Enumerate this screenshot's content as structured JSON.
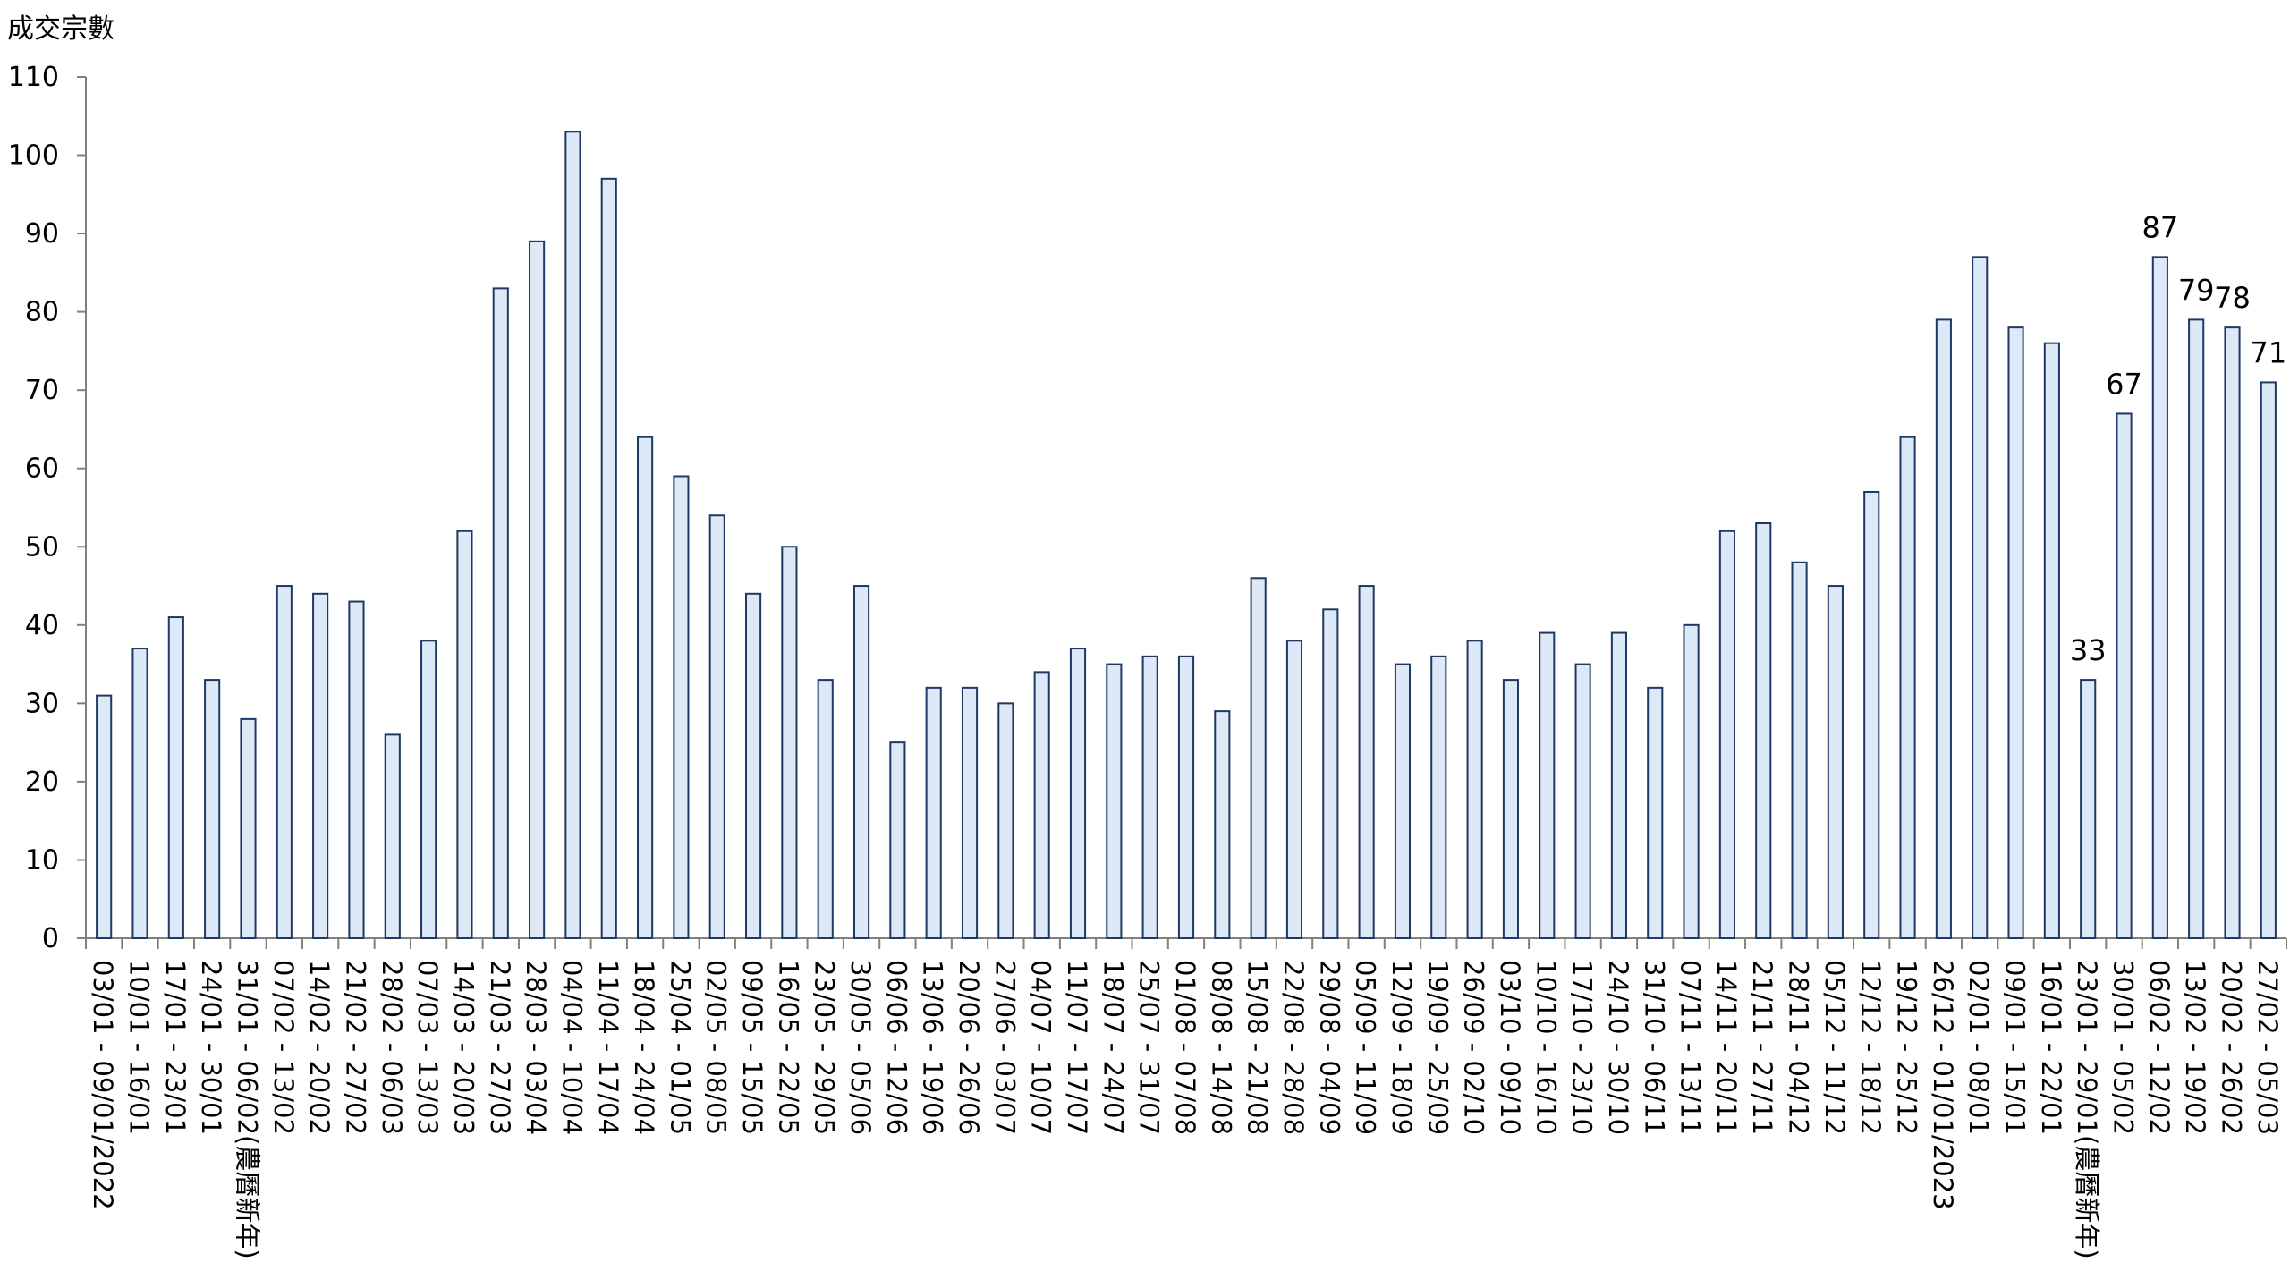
{
  "chart_data": {
    "type": "bar",
    "ylabel": "成交宗數",
    "xlabel": "",
    "title": "",
    "ylim": [
      0,
      110
    ],
    "yticks": [
      0,
      10,
      20,
      30,
      40,
      50,
      60,
      70,
      80,
      90,
      100,
      110
    ],
    "grid": false,
    "legend": "none",
    "bar_fill": "#dde9f6",
    "bar_stroke": "#1f3864",
    "axis_color": "#808080",
    "categories": [
      "03/01 - 09/01/2022",
      "10/01 - 16/01",
      "17/01 - 23/01",
      "24/01 - 30/01",
      "31/01 - 06/02(農曆新年)",
      "07/02 - 13/02",
      "14/02 - 20/02",
      "21/02 - 27/02",
      "28/02 - 06/03",
      "07/03 - 13/03",
      "14/03 - 20/03",
      "21/03 - 27/03",
      "28/03 - 03/04",
      "04/04 - 10/04",
      "11/04 - 17/04",
      "18/04 - 24/04",
      "25/04 - 01/05",
      "02/05 - 08/05",
      "09/05 - 15/05",
      "16/05 - 22/05",
      "23/05 - 29/05",
      "30/05 - 05/06",
      "06/06 - 12/06",
      "13/06 - 19/06",
      "20/06 - 26/06",
      "27/06 - 03/07",
      "04/07 - 10/07",
      "11/07 - 17/07",
      "18/07 - 24/07",
      "25/07 - 31/07",
      "01/08 - 07/08",
      "08/08 - 14/08",
      "15/08 - 21/08",
      "22/08 - 28/08",
      "29/08 - 04/09",
      "05/09 - 11/09",
      "12/09 - 18/09",
      "19/09 - 25/09",
      "26/09 - 02/10",
      "03/10 - 09/10",
      "10/10 - 16/10",
      "17/10 - 23/10",
      "24/10 - 30/10",
      "31/10 - 06/11",
      "07/11 - 13/11",
      "14/11 - 20/11",
      "21/11 - 27/11",
      "28/11 - 04/12",
      "05/12 - 11/12",
      "12/12 - 18/12",
      "19/12 - 25/12",
      "26/12 - 01/01/2023",
      "02/01 - 08/01",
      "09/01 - 15/01",
      "16/01 - 22/01",
      "23/01 - 29/01(農曆新年)",
      "30/01 - 05/02",
      "06/02 - 12/02",
      "13/02 - 19/02",
      "20/02 - 26/02",
      "27/02 - 05/03"
    ],
    "values": [
      31,
      37,
      41,
      33,
      28,
      45,
      44,
      43,
      26,
      38,
      52,
      83,
      89,
      103,
      97,
      64,
      59,
      54,
      44,
      50,
      33,
      45,
      25,
      32,
      32,
      30,
      34,
      37,
      35,
      36,
      36,
      29,
      46,
      38,
      42,
      45,
      35,
      36,
      38,
      33,
      39,
      35,
      39,
      32,
      40,
      52,
      53,
      48,
      45,
      57,
      64,
      79,
      87,
      78,
      76,
      33,
      67,
      87,
      79,
      78,
      71
    ],
    "data_labels": [
      {
        "index": 55,
        "text": "33"
      },
      {
        "index": 56,
        "text": "67"
      },
      {
        "index": 57,
        "text": "87"
      },
      {
        "index": 58,
        "text": "79"
      },
      {
        "index": 59,
        "text": "78"
      },
      {
        "index": 60,
        "text": "71"
      }
    ]
  }
}
